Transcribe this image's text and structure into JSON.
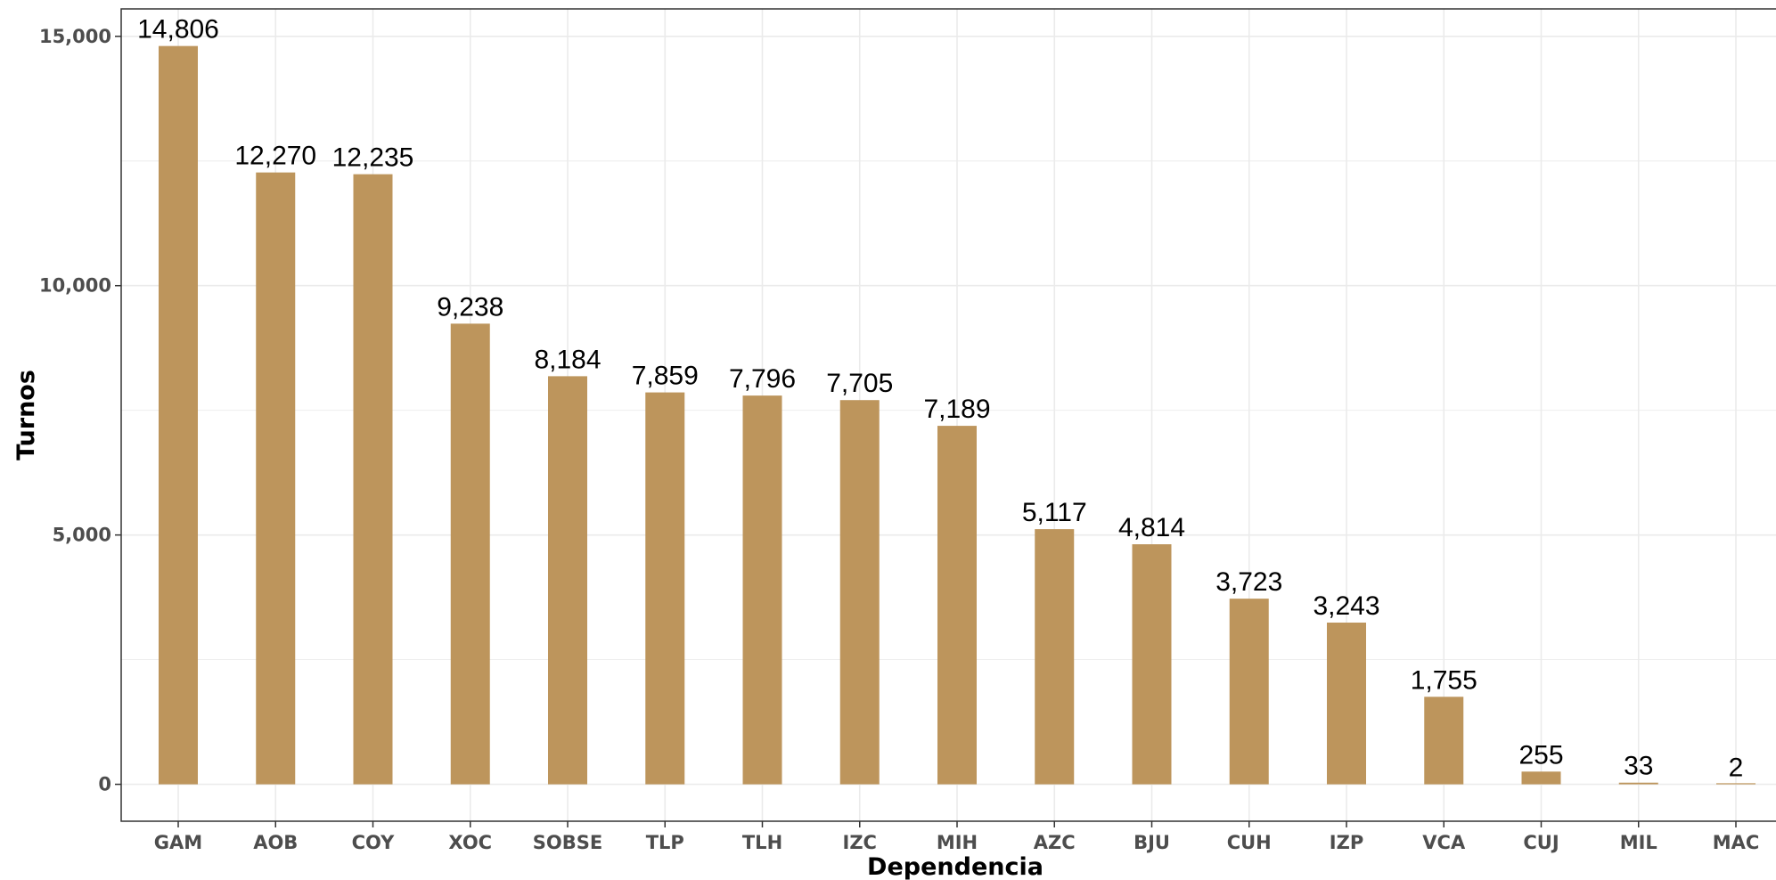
{
  "chart_data": {
    "type": "bar",
    "categories": [
      "GAM",
      "AOB",
      "COY",
      "XOC",
      "SOBSE",
      "TLP",
      "TLH",
      "IZC",
      "MIH",
      "AZC",
      "BJU",
      "CUH",
      "IZP",
      "VCA",
      "CUJ",
      "MIL",
      "MAC"
    ],
    "values": [
      14806,
      12270,
      12235,
      9238,
      8184,
      7859,
      7796,
      7705,
      7189,
      5117,
      4814,
      3723,
      3243,
      1755,
      255,
      33,
      2
    ],
    "data_labels": [
      "14,806",
      "12,270",
      "12,235",
      "9,238",
      "8,184",
      "7,859",
      "7,796",
      "7,705",
      "7,189",
      "5,117",
      "4,814",
      "3,723",
      "3,243",
      "1,755",
      "255",
      "33",
      "2"
    ],
    "xlabel": "Dependencia",
    "ylabel": "Turnos",
    "ylim": [
      -740,
      15550
    ],
    "yticks": [
      0,
      5000,
      10000,
      15000
    ],
    "ytick_labels": [
      "0",
      "5,000",
      "10,000",
      "15,000"
    ],
    "grid": true,
    "bar_color": "#bd955c",
    "grid_color": "#ebebeb",
    "panel_border_color": "#333333"
  }
}
